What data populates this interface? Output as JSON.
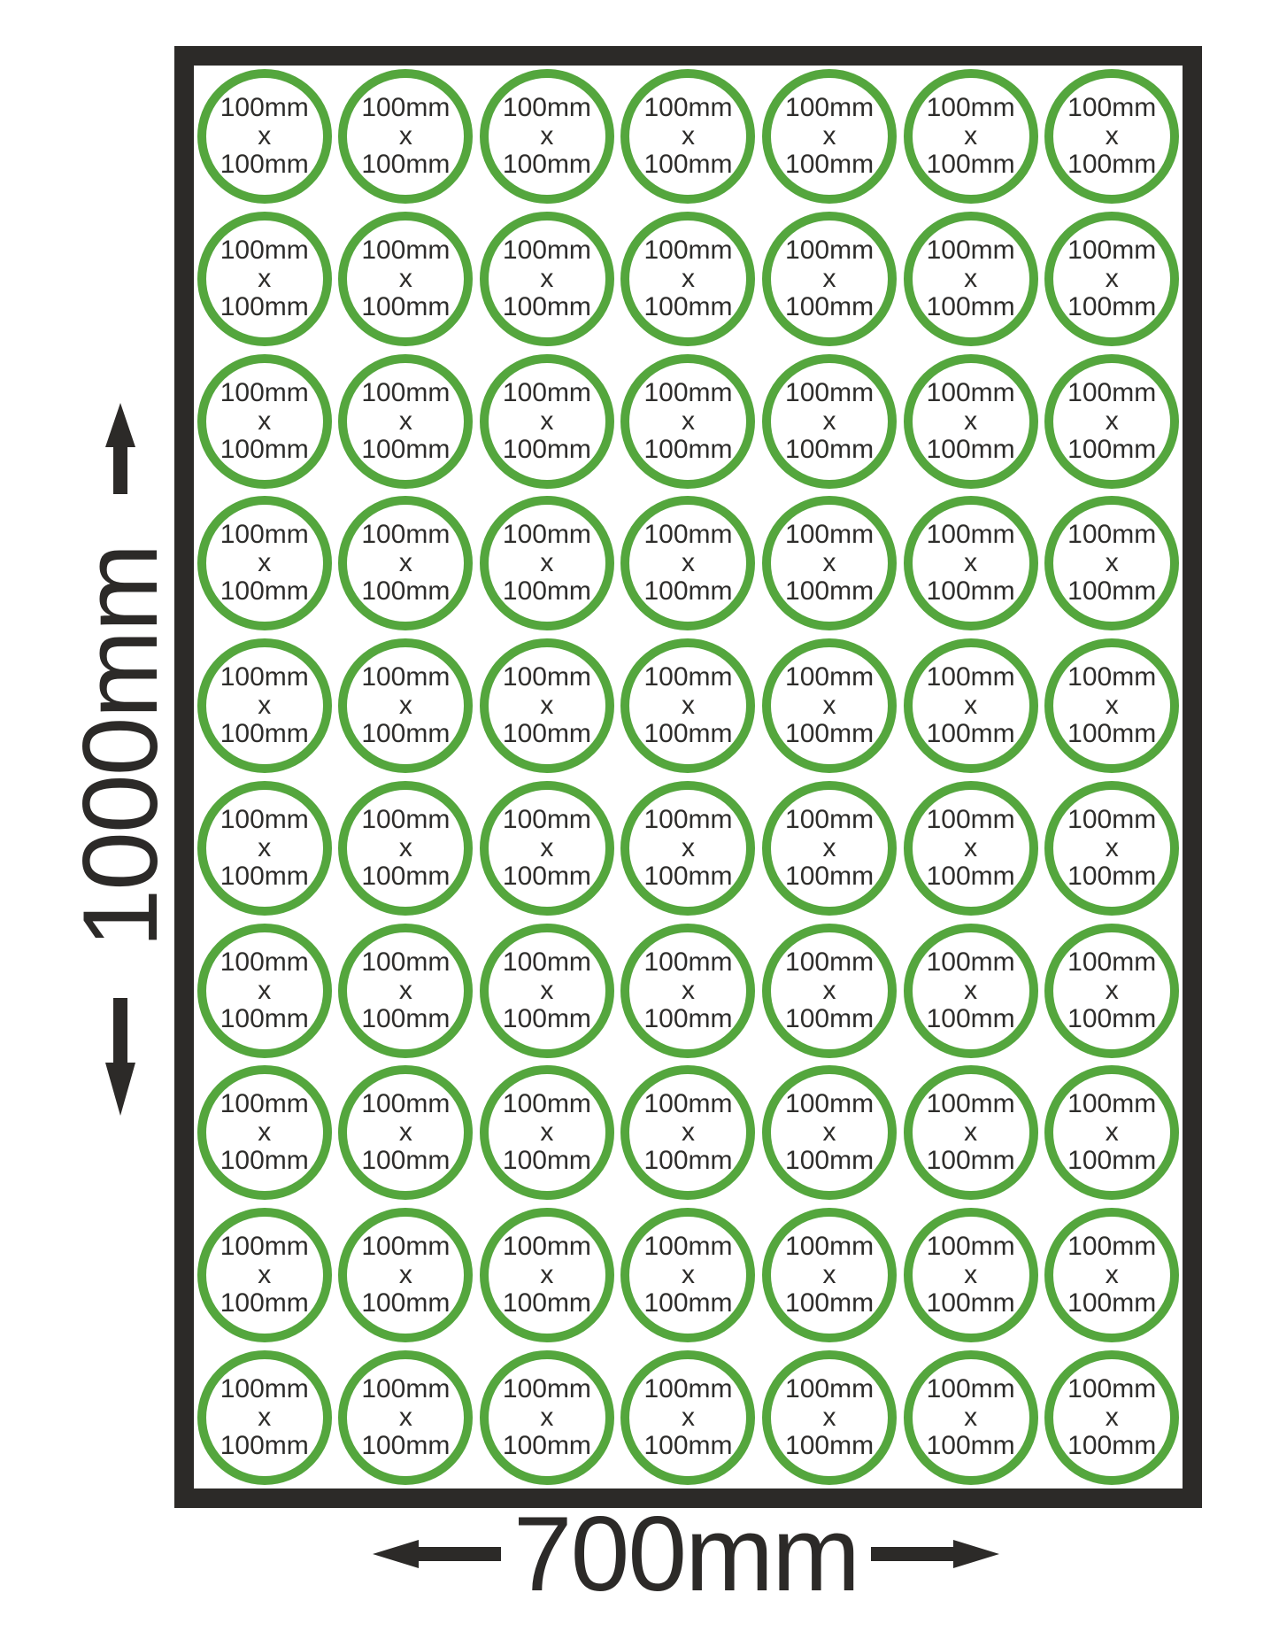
{
  "sheet": {
    "rows": 10,
    "columns": 7,
    "total_stickers": 70,
    "sticker_label_lines": [
      "100mm",
      "x",
      "100mm"
    ],
    "colors": {
      "ring": "#54a63d",
      "border": "#2c2a28",
      "label_text": "#2e2d2b"
    }
  },
  "dimensions": {
    "height_label": "1000mm",
    "width_label": "700mm",
    "arrow_color": "#2c2a28",
    "icons": {
      "up": "arrow-up-icon",
      "down": "arrow-down-icon",
      "left": "arrow-left-icon",
      "right": "arrow-right-icon"
    }
  }
}
